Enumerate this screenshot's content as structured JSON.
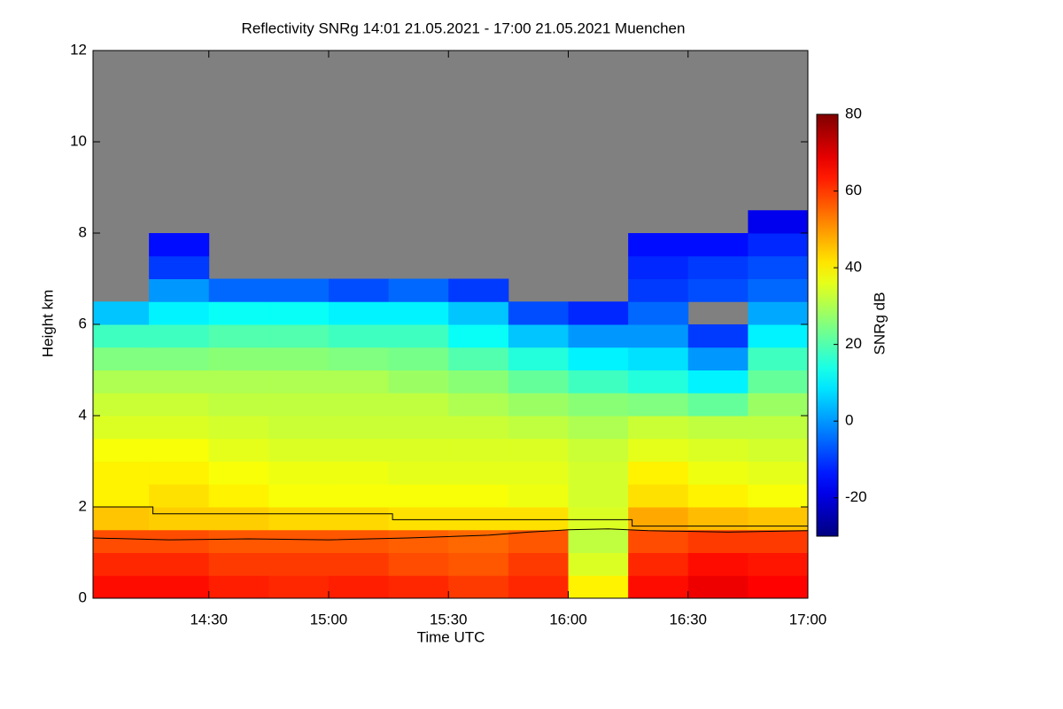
{
  "chart_data": {
    "type": "heatmap",
    "title": "Reflectivity SNRg   14:01 21.05.2021 - 17:00 21.05.2021 Muenchen",
    "xlabel": "Time UTC",
    "ylabel": "Height km",
    "colorbar_label": "SNRg dB",
    "colormap": "jet",
    "missing_color": "#808080",
    "xlim": [
      "14:01",
      "17:00"
    ],
    "xticks": [
      "14:30",
      "15:00",
      "15:30",
      "16:00",
      "16:30",
      "17:00"
    ],
    "ylim": [
      0,
      12
    ],
    "yticks": [
      0,
      2,
      4,
      6,
      8,
      10,
      12
    ],
    "clim": [
      -30,
      80
    ],
    "cticks": [
      -20,
      0,
      20,
      40,
      60,
      80
    ],
    "x_bins": [
      "14:00",
      "14:15",
      "14:30",
      "14:45",
      "15:00",
      "15:15",
      "15:30",
      "15:45",
      "16:00",
      "16:15",
      "16:30",
      "16:45",
      "17:00"
    ],
    "y_bins": [
      0,
      0.5,
      1,
      1.5,
      2,
      2.5,
      3,
      3.5,
      4,
      4.5,
      5,
      5.5,
      6,
      6.5,
      7,
      7.5,
      8,
      8.5,
      9
    ],
    "z": [
      [
        65,
        65,
        63,
        62,
        63,
        62,
        60,
        62,
        40,
        65,
        68,
        66
      ],
      [
        62,
        62,
        60,
        60,
        60,
        58,
        57,
        60,
        35,
        62,
        65,
        64
      ],
      [
        58,
        58,
        57,
        57,
        57,
        56,
        55,
        57,
        32,
        58,
        60,
        60
      ],
      [
        45,
        44,
        44,
        43,
        43,
        42,
        42,
        42,
        35,
        48,
        46,
        45
      ],
      [
        40,
        42,
        40,
        38,
        38,
        38,
        38,
        37,
        34,
        42,
        40,
        38
      ],
      [
        40,
        40,
        38,
        37,
        37,
        36,
        36,
        36,
        34,
        40,
        37,
        36
      ],
      [
        38,
        38,
        36,
        35,
        35,
        35,
        35,
        35,
        33,
        36,
        35,
        34
      ],
      [
        35,
        35,
        34,
        33,
        33,
        33,
        33,
        32,
        30,
        33,
        32,
        32
      ],
      [
        33,
        33,
        32,
        32,
        32,
        32,
        30,
        28,
        26,
        25,
        22,
        28
      ],
      [
        30,
        30,
        30,
        30,
        30,
        28,
        26,
        22,
        18,
        15,
        10,
        22
      ],
      [
        25,
        25,
        26,
        26,
        25,
        24,
        20,
        15,
        10,
        8,
        0,
        18
      ],
      [
        18,
        18,
        20,
        20,
        18,
        18,
        12,
        5,
        0,
        0,
        -10,
        10
      ],
      [
        5,
        10,
        12,
        12,
        10,
        10,
        5,
        -8,
        -12,
        -5,
        null,
        2
      ],
      [
        null,
        0,
        -5,
        -5,
        -8,
        -5,
        -10,
        null,
        null,
        -10,
        -8,
        -5
      ],
      [
        null,
        -10,
        null,
        null,
        null,
        null,
        null,
        null,
        null,
        -12,
        -10,
        -8
      ],
      [
        null,
        -15,
        null,
        null,
        null,
        null,
        null,
        null,
        null,
        -15,
        -15,
        -12
      ],
      [
        null,
        null,
        null,
        null,
        null,
        null,
        null,
        null,
        null,
        null,
        null,
        -18
      ],
      [
        null,
        null,
        null,
        null,
        null,
        null,
        null,
        null,
        null,
        null,
        null,
        null
      ]
    ],
    "lines": [
      {
        "color": "#000000",
        "x": [
          "14:01",
          "14:16",
          "14:16",
          "15:16",
          "15:16",
          "16:16",
          "16:16",
          "17:00"
        ],
        "values": [
          2.0,
          2.0,
          1.85,
          1.85,
          1.72,
          1.72,
          1.58,
          1.58
        ]
      },
      {
        "color": "#000000",
        "x": [
          "14:01",
          "14:20",
          "14:40",
          "15:00",
          "15:20",
          "15:40",
          "15:50",
          "16:00",
          "16:10",
          "16:20",
          "16:40",
          "17:00"
        ],
        "values": [
          1.32,
          1.28,
          1.3,
          1.28,
          1.32,
          1.38,
          1.45,
          1.5,
          1.52,
          1.48,
          1.45,
          1.48
        ]
      }
    ]
  }
}
